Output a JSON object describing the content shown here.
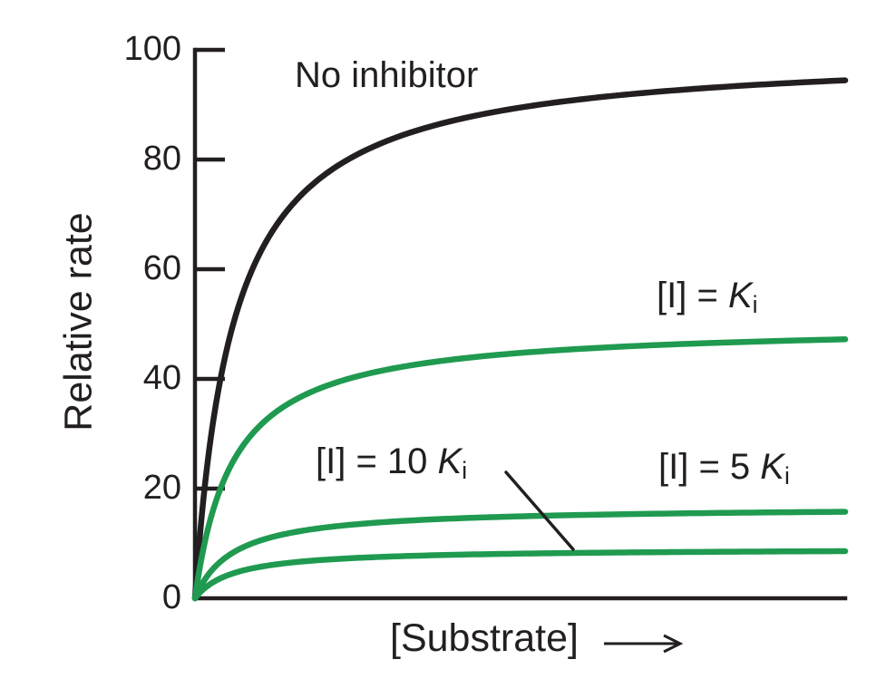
{
  "figure": {
    "background": "#ffffff",
    "ink_color": "#231f20",
    "accent_green": "#1f9a50"
  },
  "chart_data": {
    "type": "line",
    "xlabel": "[Substrate]",
    "xlabel_arrow": true,
    "ylabel": "Relative rate",
    "ylim": [
      0,
      100
    ],
    "yticks": [
      0,
      20,
      40,
      60,
      80,
      100
    ],
    "x_tick_labels": [],
    "x_range_in_Km_units": [
      0,
      17
    ],
    "grid": false,
    "legend": "inline curve labels",
    "model": "Michaelis-Menten v = Vmax*[S]/(Km+[S]); noncompetitive inhibition: Vmax reduced, Km unchanged",
    "sample_x_in_Km_units": [
      0,
      0.5,
      1,
      2,
      4,
      8,
      17
    ],
    "series": [
      {
        "id": "no-inhibitor",
        "label": "No inhibitor",
        "color": "#231f20",
        "vmax": 100,
        "km_rel": 1,
        "values": [
          0,
          33.3,
          50,
          66.7,
          80,
          88.9,
          94.4
        ],
        "value_at_right_edge": 95
      },
      {
        "id": "ki",
        "label": "[I] = Ki",
        "color": "#1f9a50",
        "vmax": 50,
        "km_rel": 1,
        "values": [
          0,
          16.7,
          25,
          33.3,
          40,
          44.4,
          47.2
        ],
        "value_at_right_edge": 48
      },
      {
        "id": "5ki",
        "label": "[I] = 5 Ki",
        "color": "#1f9a50",
        "vmax": 16.7,
        "km_rel": 1,
        "values": [
          0,
          5.6,
          8.3,
          11.1,
          13.3,
          14.8,
          15.7
        ],
        "value_at_right_edge": 16
      },
      {
        "id": "10ki",
        "label": "[I] = 10 Ki",
        "color": "#1f9a50",
        "vmax": 9.1,
        "km_rel": 1,
        "values": [
          0,
          3.0,
          4.5,
          6.1,
          7.3,
          8.1,
          8.6
        ],
        "value_at_right_edge": 9
      }
    ],
    "annotations": [
      {
        "type": "leader-line",
        "from_label": "[I] = 10 Ki",
        "points_to": "plateau of the [I] = 10 Ki curve"
      }
    ]
  },
  "axes": {
    "y_label": "Relative rate",
    "x_label": "[Substrate]",
    "y_tick_labels": [
      "100",
      "80",
      "60",
      "40",
      "20",
      "0"
    ]
  },
  "labels": {
    "no_inhibitor": "No inhibitor",
    "ki": {
      "pre": "[I] = ",
      "k": "K",
      "sub": "i"
    },
    "ki5": {
      "pre": "[I] = 5 ",
      "k": "K",
      "sub": "i"
    },
    "ki10": {
      "pre": "[I] = 10 ",
      "k": "K",
      "sub": "i"
    }
  }
}
